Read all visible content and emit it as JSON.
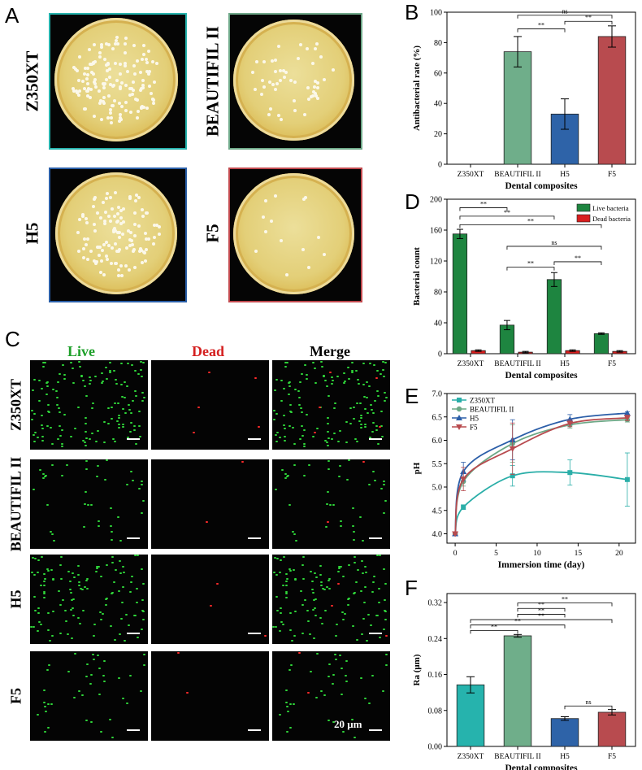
{
  "panel_labels": {
    "a": "A",
    "b": "B",
    "c": "C",
    "d": "D",
    "e": "E",
    "f": "F"
  },
  "panel_a": {
    "labels": [
      "Z350XT",
      "BEAUTIFIL II",
      "H5",
      "F5"
    ],
    "frame_colors": [
      "#26b3ad",
      "#6fa889",
      "#2a5fa8",
      "#c24a4f"
    ]
  },
  "panel_c": {
    "col_titles": [
      "Live",
      "Dead",
      "Merge"
    ],
    "col_colors": [
      "#1ea02a",
      "#d42020",
      "#000000"
    ],
    "row_labels": [
      "Z350XT",
      "BEAUTIFIL II",
      "H5",
      "F5"
    ],
    "scale_label": "20 μm"
  },
  "chart_data": [
    {
      "id": "B",
      "type": "bar",
      "categories": [
        "Z350XT",
        "BEAUTIFIL II",
        "H5",
        "F5"
      ],
      "values": [
        0,
        74,
        33,
        84
      ],
      "errors": [
        0,
        10,
        10,
        7
      ],
      "colors": [
        "#26b3ad",
        "#6fae8a",
        "#2e63a8",
        "#b84b4f"
      ],
      "xlabel": "Dental composites",
      "ylabel": "Antibacterial rate (%)",
      "ylim": [
        0,
        100
      ],
      "yticks": [
        0,
        20,
        40,
        60,
        80,
        100
      ],
      "brackets": [
        {
          "from": 1,
          "to": 2,
          "y": 89,
          "label": "**"
        },
        {
          "from": 2,
          "to": 3,
          "y": 94,
          "label": "**"
        },
        {
          "from": 1,
          "to": 3,
          "y": 98,
          "label": "ns"
        }
      ]
    },
    {
      "id": "D",
      "type": "bar",
      "categories": [
        "Z350XT",
        "BEAUTIFIL II",
        "H5",
        "F5"
      ],
      "series": [
        {
          "name": "Live bacteria",
          "color": "#1e8540",
          "values": [
            155,
            37,
            96,
            26
          ],
          "errors": [
            6,
            6,
            9,
            1
          ]
        },
        {
          "name": "Dead bacteria",
          "color": "#d81e1e",
          "values": [
            4,
            2,
            4,
            3
          ],
          "errors": [
            1,
            1,
            1,
            1
          ]
        }
      ],
      "xlabel": "Dental composites",
      "ylabel": "Bacterial count",
      "ylim": [
        0,
        200
      ],
      "yticks": [
        0,
        40,
        80,
        120,
        160,
        200
      ],
      "legend_position": "top-right",
      "brackets": [
        {
          "from": 0,
          "to": 1,
          "y": 189,
          "label": "**"
        },
        {
          "from": 0,
          "to": 2,
          "y": 178,
          "label": "**"
        },
        {
          "from": 0,
          "to": 3,
          "y": 167,
          "label": "**"
        },
        {
          "from": 1,
          "to": 3,
          "y": 139,
          "label": "ns"
        },
        {
          "from": 1,
          "to": 2,
          "y": 112,
          "label": "**"
        },
        {
          "from": 2,
          "to": 3,
          "y": 119,
          "label": "**"
        }
      ]
    },
    {
      "id": "E",
      "type": "line",
      "x": [
        0,
        1,
        7,
        14,
        21
      ],
      "series": [
        {
          "name": "Z350XT",
          "color": "#2aaea8",
          "marker": "square",
          "values": [
            4.0,
            4.57,
            5.24,
            5.31,
            5.16
          ],
          "errors": [
            0.02,
            0.05,
            0.22,
            0.27,
            0.57
          ]
        },
        {
          "name": "BEAUTIFIL II",
          "color": "#6ca886",
          "marker": "circle",
          "values": [
            4.0,
            5.12,
            5.93,
            6.33,
            6.44
          ],
          "errors": [
            0.02,
            0.1,
            0.4,
            0.07,
            0.05
          ]
        },
        {
          "name": "H5",
          "color": "#2b5ea8",
          "marker": "triangle-up",
          "values": [
            4.0,
            5.33,
            6.01,
            6.45,
            6.58
          ],
          "errors": [
            0.02,
            0.2,
            0.43,
            0.1,
            0.03
          ]
        },
        {
          "name": "F5",
          "color": "#b84b4f",
          "marker": "triangle-down",
          "values": [
            4.0,
            5.17,
            5.82,
            6.36,
            6.48
          ],
          "errors": [
            0.02,
            0.25,
            0.55,
            0.07,
            0.06
          ]
        }
      ],
      "xlabel": "Immersion time (day)",
      "ylabel": "pH",
      "xlim": [
        -1,
        22
      ],
      "ylim": [
        3.8,
        7.0
      ],
      "xticks": [
        0,
        5,
        10,
        15,
        20
      ],
      "yticks": [
        4.0,
        4.5,
        5.0,
        5.5,
        6.0,
        6.5,
        7.0
      ],
      "legend_position": "top-left"
    },
    {
      "id": "F",
      "type": "bar",
      "categories": [
        "Z350XT",
        "BEAUTIFIL II",
        "H5",
        "F5"
      ],
      "values": [
        0.137,
        0.246,
        0.062,
        0.076
      ],
      "errors": [
        0.018,
        0.003,
        0.004,
        0.006
      ],
      "colors": [
        "#26b3ad",
        "#6fae8a",
        "#2e63a8",
        "#b84b4f"
      ],
      "xlabel": "Dental composites",
      "ylabel": "Ra (μm)",
      "ylim": [
        0,
        0.34
      ],
      "yticks": [
        0.0,
        0.08,
        0.16,
        0.24,
        0.32
      ],
      "ytick_labels": [
        "0.00",
        "0.08",
        "0.16",
        "0.24",
        "0.32"
      ],
      "brackets": [
        {
          "from": 0,
          "to": 1,
          "y": 0.258,
          "label": "**"
        },
        {
          "from": 0,
          "to": 2,
          "y": 0.27,
          "label": "**"
        },
        {
          "from": 0,
          "to": 3,
          "y": 0.282,
          "label": "**"
        },
        {
          "from": 1,
          "to": 2,
          "y": 0.294,
          "label": "**"
        },
        {
          "from": 1,
          "to": 2,
          "y": 0.307,
          "label": "**"
        },
        {
          "from": 1,
          "to": 3,
          "y": 0.319,
          "label": "**"
        },
        {
          "from": 2,
          "to": 3,
          "y": 0.09,
          "label": "ns"
        }
      ]
    }
  ]
}
